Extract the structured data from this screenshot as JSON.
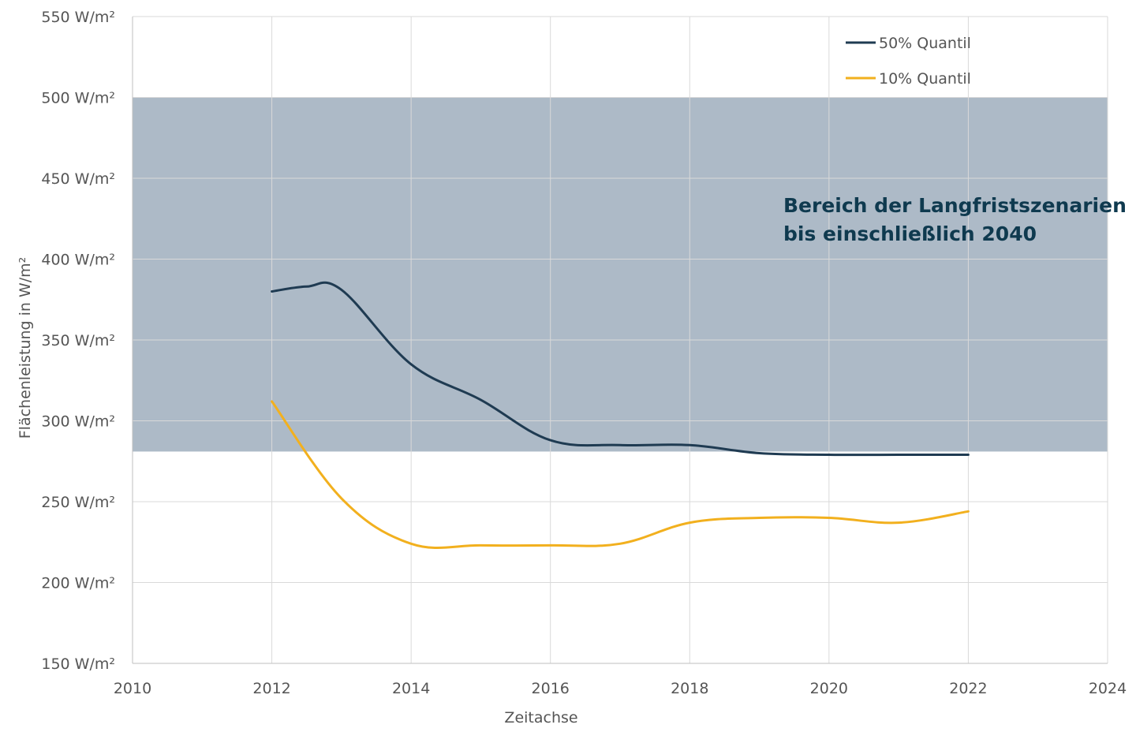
{
  "chart_data": {
    "type": "line",
    "xlabel": "Zeitachse",
    "ylabel": "Flächenleistung in W/m²",
    "xlim": [
      2010,
      2024
    ],
    "ylim": [
      150,
      550
    ],
    "x_ticks": [
      2010,
      2012,
      2014,
      2016,
      2018,
      2020,
      2022,
      2024
    ],
    "y_ticks": [
      150,
      200,
      250,
      300,
      350,
      400,
      450,
      500,
      550
    ],
    "y_tick_labels": [
      "150 W/m²",
      "200 W/m²",
      "250 W/m²",
      "300 W/m²",
      "350 W/m²",
      "400 W/m²",
      "450 W/m²",
      "500 W/m²",
      "550 W/m²"
    ],
    "grid": true,
    "legend_position": "top-right",
    "band": {
      "y_from": 281,
      "y_to": 500,
      "color": "#adbac7",
      "label_lines": [
        "Bereich der Langfristszenarien",
        "bis einschließlich 2040"
      ]
    },
    "series": [
      {
        "name": "50% Quantil",
        "color": "#1f3b52",
        "x": [
          2012,
          2012.5,
          2013,
          2014,
          2015,
          2016,
          2017,
          2018,
          2019,
          2020,
          2021,
          2022
        ],
        "values": [
          380,
          383,
          381,
          335,
          313,
          288,
          285,
          285,
          280,
          279,
          279,
          279
        ]
      },
      {
        "name": "10% Quantil",
        "color": "#f2b01e",
        "x": [
          2012,
          2013,
          2014,
          2015,
          2016,
          2017,
          2018,
          2019,
          2020,
          2021,
          2022
        ],
        "values": [
          312,
          252,
          224,
          223,
          223,
          224,
          237,
          240,
          240,
          237,
          244
        ]
      }
    ]
  }
}
